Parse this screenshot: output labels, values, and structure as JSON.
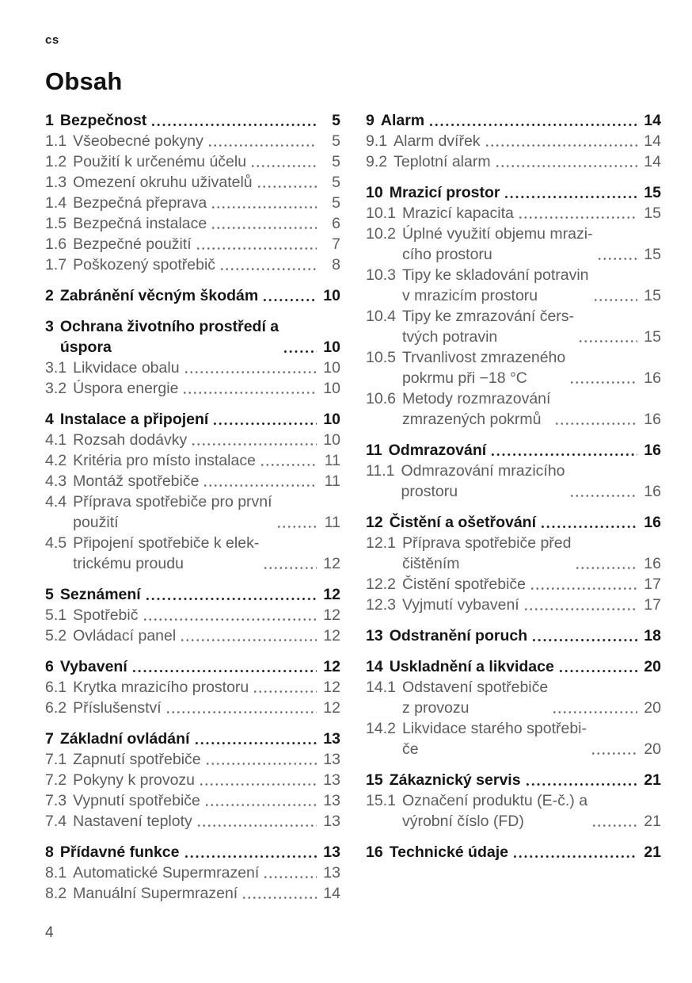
{
  "page": {
    "lang_code": "cs",
    "title": "Obsah",
    "footer_page_number": "4"
  },
  "colors": {
    "heading_text": "#161616",
    "entry_text": "#5d5d5d",
    "background": "#ffffff"
  },
  "toc": {
    "left_column": [
      {
        "header": {
          "num": "1",
          "label": "Bezpečnost",
          "page": "5"
        },
        "items": [
          {
            "num": "1.1",
            "label": "Všeobecné pokyny",
            "page": "5"
          },
          {
            "num": "1.2",
            "label": "Použití k určenému účelu",
            "page": "5"
          },
          {
            "num": "1.3",
            "label": "Omezení okruhu uživatelů",
            "page": "5"
          },
          {
            "num": "1.4",
            "label": "Bezpečná přeprava",
            "page": "5"
          },
          {
            "num": "1.5",
            "label": "Bezpečná instalace",
            "page": "6"
          },
          {
            "num": "1.6",
            "label": "Bezpečné použití",
            "page": "7"
          },
          {
            "num": "1.7",
            "label": "Poškozený spotřebič",
            "page": "8"
          }
        ]
      },
      {
        "header": {
          "num": "2",
          "label": "Zabránění věcným škodám",
          "page": "10"
        },
        "items": []
      },
      {
        "header": {
          "num": "3",
          "label": "Ochrana životního prostředí a\núspora",
          "page": "10"
        },
        "items": [
          {
            "num": "3.1",
            "label": "Likvidace obalu",
            "page": "10"
          },
          {
            "num": "3.2",
            "label": "Úspora energie",
            "page": "10"
          }
        ]
      },
      {
        "header": {
          "num": "4",
          "label": "Instalace a připojení",
          "page": "10"
        },
        "items": [
          {
            "num": "4.1",
            "label": "Rozsah dodávky",
            "page": "10"
          },
          {
            "num": "4.2",
            "label": "Kritéria pro místo instalace",
            "page": "11"
          },
          {
            "num": "4.3",
            "label": "Montáž spotřebiče",
            "page": "11"
          },
          {
            "num": "4.4",
            "label": "Příprava spotřebiče pro první\npoužití",
            "page": "11"
          },
          {
            "num": "4.5",
            "label": "Připojení spotřebiče k elek-\ntrickému proudu",
            "page": "12"
          }
        ]
      },
      {
        "header": {
          "num": "5",
          "label": "Seznámení",
          "page": "12"
        },
        "items": [
          {
            "num": "5.1",
            "label": "Spotřebič",
            "page": "12"
          },
          {
            "num": "5.2",
            "label": "Ovládací panel",
            "page": "12"
          }
        ]
      },
      {
        "header": {
          "num": "6",
          "label": "Vybavení",
          "page": "12"
        },
        "items": [
          {
            "num": "6.1",
            "label": "Krytka mrazicího prostoru",
            "page": "12"
          },
          {
            "num": "6.2",
            "label": "Příslušenství",
            "page": "12"
          }
        ]
      },
      {
        "header": {
          "num": "7",
          "label": "Základní ovládání",
          "page": "13"
        },
        "items": [
          {
            "num": "7.1",
            "label": "Zapnutí spotřebiče",
            "page": "13"
          },
          {
            "num": "7.2",
            "label": "Pokyny k provozu",
            "page": "13"
          },
          {
            "num": "7.3",
            "label": "Vypnutí spotřebiče",
            "page": "13"
          },
          {
            "num": "7.4",
            "label": "Nastavení teploty",
            "page": "13"
          }
        ]
      },
      {
        "header": {
          "num": "8",
          "label": "Přídavné funkce",
          "page": "13"
        },
        "items": [
          {
            "num": "8.1",
            "label": "Automatické Supermrazení",
            "page": "13"
          },
          {
            "num": "8.2",
            "label": "Manuální Supermrazení",
            "page": "14"
          }
        ]
      }
    ],
    "right_column": [
      {
        "header": {
          "num": "9",
          "label": "Alarm",
          "page": "14"
        },
        "items": [
          {
            "num": "9.1",
            "label": "Alarm dvířek",
            "page": "14"
          },
          {
            "num": "9.2",
            "label": "Teplotní alarm",
            "page": "14"
          }
        ]
      },
      {
        "header": {
          "num": "10",
          "label": "Mrazicí prostor",
          "page": "15"
        },
        "items": [
          {
            "num": "10.1",
            "label": "Mrazicí kapacita",
            "page": "15"
          },
          {
            "num": "10.2",
            "label": "Úplné využití objemu mrazi-\ncího prostoru",
            "page": "15"
          },
          {
            "num": "10.3",
            "label": "Tipy ke skladování potravin\nv mrazicím prostoru",
            "page": "15"
          },
          {
            "num": "10.4",
            "label": "Tipy ke zmrazování čers-\ntvých potravin",
            "page": "15"
          },
          {
            "num": "10.5",
            "label": "Trvanlivost zmrazeného\npokrmu při −18 °C",
            "page": "16"
          },
          {
            "num": "10.6",
            "label": "Metody rozmrazování\nzmrazených pokrmů",
            "page": "16"
          }
        ]
      },
      {
        "header": {
          "num": "11",
          "label": "Odmrazování",
          "page": "16"
        },
        "items": [
          {
            "num": "11.1",
            "label": "Odmrazování mrazicího\nprostoru",
            "page": "16"
          }
        ]
      },
      {
        "header": {
          "num": "12",
          "label": "Čistění a ošetřování",
          "page": "16"
        },
        "items": [
          {
            "num": "12.1",
            "label": "Příprava spotřebiče před\nčištěním",
            "page": "16"
          },
          {
            "num": "12.2",
            "label": "Čistění spotřebiče",
            "page": "17"
          },
          {
            "num": "12.3",
            "label": "Vyjmutí vybavení",
            "page": "17"
          }
        ]
      },
      {
        "header": {
          "num": "13",
          "label": "Odstranění poruch",
          "page": "18"
        },
        "items": []
      },
      {
        "header": {
          "num": "14",
          "label": "Uskladnění a likvidace",
          "page": "20"
        },
        "items": [
          {
            "num": "14.1",
            "label": "Odstavení spotřebiče\nz provozu",
            "page": "20"
          },
          {
            "num": "14.2",
            "label": "Likvidace starého spotřebi-\nče",
            "page": "20"
          }
        ]
      },
      {
        "header": {
          "num": "15",
          "label": "Zákaznický servis",
          "page": "21"
        },
        "items": [
          {
            "num": "15.1",
            "label": "Označení produktu (E-č.) a\nvýrobní číslo (FD)",
            "page": "21"
          }
        ]
      },
      {
        "header": {
          "num": "16",
          "label": "Technické údaje",
          "page": "21"
        },
        "items": []
      }
    ]
  }
}
